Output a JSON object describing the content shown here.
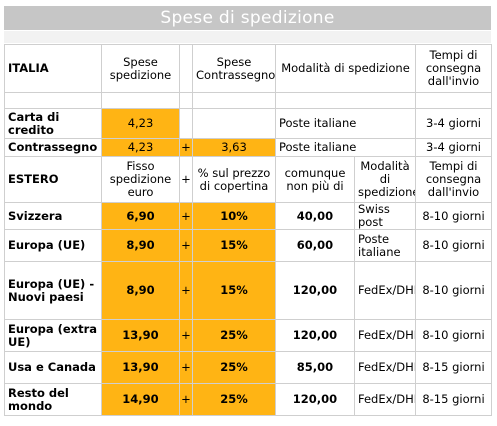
{
  "title": "Spese di spedizione",
  "italia_header": {
    "label": "ITALIA",
    "col_spese": "Spese spedizione",
    "col_contrassegno": "Spese Contrassegno",
    "col_modalita": "Modalità di spedizione",
    "col_tempi": "Tempi di consegna dall'invio"
  },
  "italia_rows": [
    {
      "label": "Carta di credito",
      "spese": "4,23",
      "plus": "",
      "contrassegno": "",
      "modalita": "Poste italiane",
      "tempi": "3-4 giorni"
    },
    {
      "label": "Contrassegno",
      "spese": "4,23",
      "plus": "+",
      "contrassegno": "3,63",
      "modalita": "Poste italiane",
      "tempi": "3-4 giorni"
    }
  ],
  "estero_header": {
    "label": "ESTERO",
    "col_fisso": "Fisso spedizione euro",
    "col_plus": "+",
    "col_percent": "% sul prezzo di copertina",
    "col_max": "comunque non più di",
    "col_modalita": "Modalità di spedizione",
    "col_tempi": "Tempi di consegna dall'invio"
  },
  "estero_rows": [
    {
      "label": "Svizzera",
      "fisso": "6,90",
      "plus": "+",
      "percent": "10%",
      "max": "40,00",
      "modalita": "Swiss post",
      "tempi": "8-10 giorni"
    },
    {
      "label": "Europa (UE)",
      "fisso": "8,90",
      "plus": "+",
      "percent": "15%",
      "max": "60,00",
      "modalita": "Poste italiane",
      "tempi": "8-10 giorni"
    },
    {
      "label": "Europa (UE) - Nuovi paesi",
      "fisso": "8,90",
      "plus": "+",
      "percent": "15%",
      "max": "120,00",
      "modalita": "FedEx/DHL",
      "tempi": "8-10 giorni"
    },
    {
      "label": "Europa (extra UE)",
      "fisso": "13,90",
      "plus": "+",
      "percent": "25%",
      "max": "120,00",
      "modalita": "FedEx/DHL",
      "tempi": "8-10 giorni"
    },
    {
      "label": "Usa e Canada",
      "fisso": "13,90",
      "plus": "+",
      "percent": "25%",
      "max": "85,00",
      "modalita": "FedEx/DHL",
      "tempi": "8-15 giorni"
    },
    {
      "label": "Resto del mondo",
      "fisso": "14,90",
      "plus": "+",
      "percent": "25%",
      "max": "120,00",
      "modalita": "FedEx/DHL",
      "tempi": "8-15 giorni"
    }
  ],
  "colors": {
    "highlight": "#ffb414",
    "title_bar": "#c6c6c6",
    "grid": "#cfcfcf"
  }
}
